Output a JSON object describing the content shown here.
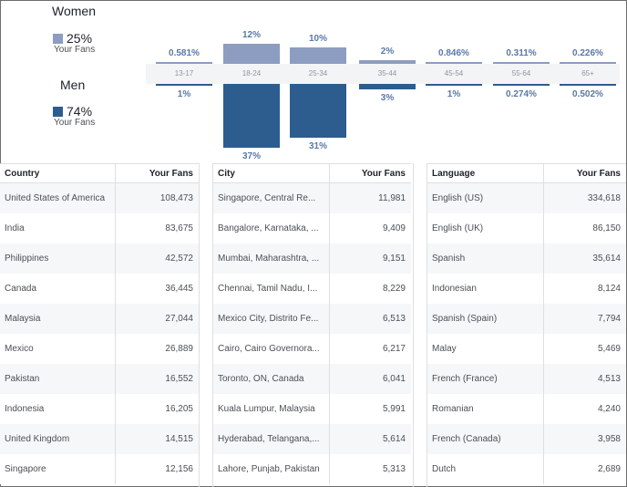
{
  "gender": {
    "women": {
      "label": "Women",
      "pct": "25%",
      "sub": "Your Fans",
      "color": "#8c9dc1"
    },
    "men": {
      "label": "Men",
      "pct": "74%",
      "sub": "Your Fans",
      "color": "#2c5d8e"
    }
  },
  "chart_data": {
    "type": "bar",
    "categories": [
      "13-17",
      "18-24",
      "25-34",
      "35-44",
      "45-54",
      "55-64",
      "65+"
    ],
    "series": [
      {
        "name": "Women",
        "values": [
          0.581,
          12,
          10,
          2,
          0.846,
          0.311,
          0.226
        ],
        "labels": [
          "0.581%",
          "12%",
          "10%",
          "2%",
          "0.846%",
          "0.311%",
          "0.226%"
        ]
      },
      {
        "name": "Men",
        "values": [
          1,
          37,
          31,
          3,
          1,
          0.274,
          0.502
        ],
        "labels": [
          "1%",
          "37%",
          "31%",
          "3%",
          "1%",
          "0.274%",
          "0.502%"
        ]
      }
    ]
  },
  "tables": [
    {
      "header": [
        "Country",
        "Your Fans"
      ],
      "rows": [
        [
          "United States of America",
          "108,473"
        ],
        [
          "India",
          "83,675"
        ],
        [
          "Philippines",
          "42,572"
        ],
        [
          "Canada",
          "36,445"
        ],
        [
          "Malaysia",
          "27,044"
        ],
        [
          "Mexico",
          "26,889"
        ],
        [
          "Pakistan",
          "16,552"
        ],
        [
          "Indonesia",
          "16,205"
        ],
        [
          "United Kingdom",
          "14,515"
        ],
        [
          "Singapore",
          "12,156"
        ]
      ]
    },
    {
      "header": [
        "City",
        "Your Fans"
      ],
      "rows": [
        [
          "Singapore, Central Re...",
          "11,981"
        ],
        [
          "Bangalore, Karnataka, ...",
          "9,409"
        ],
        [
          "Mumbai, Maharashtra, ...",
          "9,151"
        ],
        [
          "Chennai, Tamil Nadu, I...",
          "8,229"
        ],
        [
          "Mexico City, Distrito Fe...",
          "6,513"
        ],
        [
          "Cairo, Cairo Governora...",
          "6,217"
        ],
        [
          "Toronto, ON, Canada",
          "6,041"
        ],
        [
          "Kuala Lumpur, Malaysia",
          "5,991"
        ],
        [
          "Hyderabad, Telangana,...",
          "5,614"
        ],
        [
          "Lahore, Punjab, Pakistan",
          "5,313"
        ]
      ]
    },
    {
      "header": [
        "Language",
        "Your Fans"
      ],
      "rows": [
        [
          "English (US)",
          "334,618"
        ],
        [
          "English (UK)",
          "86,150"
        ],
        [
          "Spanish",
          "35,614"
        ],
        [
          "Indonesian",
          "8,124"
        ],
        [
          "Spanish (Spain)",
          "7,794"
        ],
        [
          "Malay",
          "5,469"
        ],
        [
          "French (France)",
          "4,513"
        ],
        [
          "Romanian",
          "4,240"
        ],
        [
          "French (Canada)",
          "3,958"
        ],
        [
          "Dutch",
          "2,689"
        ]
      ]
    }
  ]
}
